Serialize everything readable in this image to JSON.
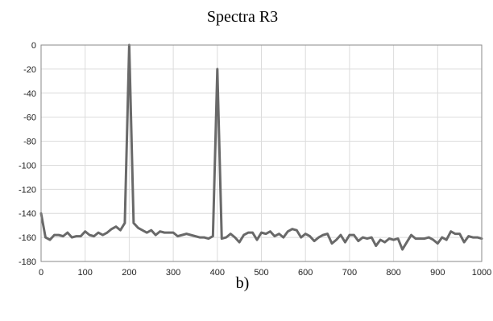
{
  "chart_data": {
    "type": "line",
    "title": "Spectra R3",
    "caption": "b)",
    "xlabel": "",
    "ylabel": "",
    "xlim": [
      0,
      1000
    ],
    "ylim": [
      -180,
      0
    ],
    "x_ticks": [
      0,
      100,
      200,
      300,
      400,
      500,
      600,
      700,
      800,
      900,
      1000
    ],
    "y_ticks": [
      0,
      -20,
      -40,
      -60,
      -80,
      -100,
      -120,
      -140,
      -160,
      -180
    ],
    "grid": true,
    "series": [
      {
        "color": "#696969",
        "x": [
          0,
          10,
          20,
          30,
          40,
          50,
          60,
          70,
          80,
          90,
          100,
          110,
          120,
          130,
          140,
          150,
          160,
          170,
          180,
          190,
          200,
          210,
          220,
          230,
          240,
          250,
          260,
          270,
          280,
          290,
          300,
          310,
          320,
          330,
          340,
          350,
          360,
          370,
          380,
          390,
          400,
          410,
          420,
          430,
          440,
          450,
          460,
          470,
          480,
          490,
          500,
          510,
          520,
          530,
          540,
          550,
          560,
          570,
          580,
          590,
          600,
          610,
          620,
          630,
          640,
          650,
          660,
          670,
          680,
          690,
          700,
          710,
          720,
          730,
          740,
          750,
          760,
          770,
          780,
          790,
          800,
          810,
          820,
          830,
          840,
          850,
          860,
          870,
          880,
          890,
          900,
          910,
          920,
          930,
          940,
          950,
          960,
          970,
          980,
          990,
          1000
        ],
        "y": [
          -140,
          -160,
          -162,
          -158,
          -158,
          -159,
          -156,
          -160,
          -159,
          -159,
          -155,
          -158,
          -159,
          -156,
          -158,
          -156,
          -153,
          -151,
          -154,
          -148,
          0,
          -148,
          -152,
          -154,
          -156,
          -154,
          -158,
          -155,
          -156,
          -156,
          -156,
          -159,
          -158,
          -157,
          -158,
          -159,
          -160,
          -160,
          -161,
          -159,
          -20,
          -161,
          -160,
          -157,
          -160,
          -164,
          -158,
          -156,
          -156,
          -162,
          -156,
          -157,
          -155,
          -159,
          -157,
          -160,
          -155,
          -153,
          -154,
          -160,
          -157,
          -159,
          -163,
          -160,
          -158,
          -157,
          -165,
          -162,
          -158,
          -164,
          -158,
          -158,
          -163,
          -160,
          -161,
          -160,
          -167,
          -162,
          -164,
          -161,
          -162,
          -161,
          -170,
          -164,
          -158,
          -161,
          -161,
          -161,
          -160,
          -162,
          -165,
          -160,
          -162,
          -155,
          -157,
          -157,
          -164,
          -159,
          -160,
          -160,
          -161
        ]
      }
    ]
  }
}
